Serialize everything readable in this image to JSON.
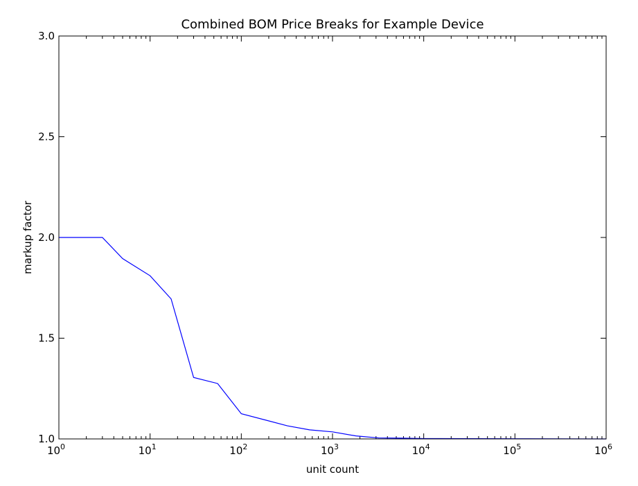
{
  "chart_data": {
    "type": "line",
    "title": "Combined BOM Price Breaks for Example Device",
    "xlabel": "unit count",
    "ylabel": "markup factor",
    "xscale": "log",
    "xlim": [
      1,
      1000000
    ],
    "ylim": [
      1.0,
      3.0
    ],
    "grid": false,
    "legend": "none",
    "xticks": [
      {
        "value": 1,
        "base": "10",
        "exp": "0"
      },
      {
        "value": 10,
        "base": "10",
        "exp": "1"
      },
      {
        "value": 100,
        "base": "10",
        "exp": "2"
      },
      {
        "value": 1000,
        "base": "10",
        "exp": "3"
      },
      {
        "value": 10000,
        "base": "10",
        "exp": "4"
      },
      {
        "value": 100000,
        "base": "10",
        "exp": "5"
      },
      {
        "value": 1000000,
        "base": "10",
        "exp": "6"
      }
    ],
    "yticks": [
      {
        "value": 1.0,
        "label": "1.0"
      },
      {
        "value": 1.5,
        "label": "1.5"
      },
      {
        "value": 2.0,
        "label": "2.0"
      },
      {
        "value": 2.5,
        "label": "2.5"
      },
      {
        "value": 3.0,
        "label": "3.0"
      }
    ],
    "series": [
      {
        "color": "#0000ff",
        "x": [
          1,
          3,
          5,
          10,
          17,
          30,
          55,
          100,
          180,
          320,
          560,
          1000,
          1800,
          3200,
          5600,
          10000,
          100000,
          1000000
        ],
        "y": [
          2.0,
          2.0,
          1.895,
          1.81,
          1.695,
          1.305,
          1.275,
          1.125,
          1.095,
          1.065,
          1.045,
          1.035,
          1.015,
          1.005,
          1.004,
          1.002,
          1.001,
          1.0
        ]
      }
    ]
  }
}
